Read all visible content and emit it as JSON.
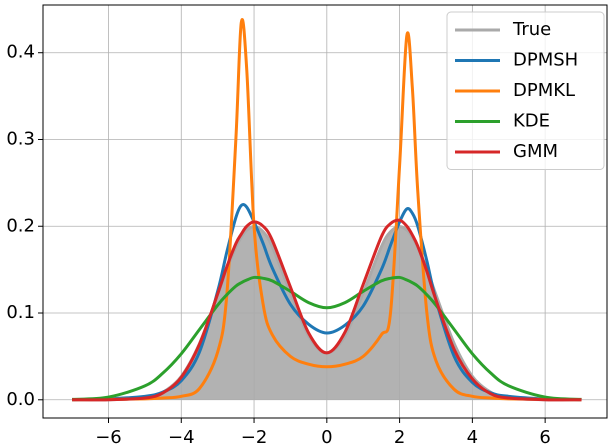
{
  "chart_data": {
    "type": "line",
    "x": [
      -7,
      -6,
      -5,
      -4.5,
      -4,
      -3.5,
      -3,
      -2.75,
      -2.5,
      -2.35,
      -2.2,
      -2,
      -1.75,
      -1.5,
      -1,
      -0.5,
      0,
      0.5,
      1,
      1.5,
      1.75,
      2,
      2.2,
      2.35,
      2.5,
      2.75,
      3,
      3.5,
      4,
      4.5,
      5,
      6,
      7
    ],
    "series": [
      {
        "name": "True",
        "color": "#aaaaaa",
        "fill": true,
        "values": [
          0,
          0.0001,
          0.0022,
          0.0088,
          0.027,
          0.0648,
          0.121,
          0.1506,
          0.176,
          0.1875,
          0.1955,
          0.1996,
          0.1936,
          0.1764,
          0.1232,
          0.0736,
          0.054,
          0.0736,
          0.1232,
          0.1764,
          0.1936,
          0.1996,
          0.1955,
          0.1875,
          0.176,
          0.1506,
          0.121,
          0.0648,
          0.027,
          0.0088,
          0.0022,
          0.0001,
          0
        ]
      },
      {
        "name": "DPMSH",
        "color": "#1f77b4",
        "values": [
          0,
          0.001,
          0.004,
          0.009,
          0.022,
          0.055,
          0.125,
          0.17,
          0.21,
          0.224,
          0.222,
          0.205,
          0.18,
          0.152,
          0.11,
          0.087,
          0.077,
          0.086,
          0.108,
          0.15,
          0.178,
          0.205,
          0.22,
          0.215,
          0.2,
          0.16,
          0.115,
          0.05,
          0.02,
          0.008,
          0.004,
          0.001,
          0
        ]
      },
      {
        "name": "DPMKL",
        "color": "#ff7f0e",
        "values": [
          0,
          0.0005,
          0.001,
          0.002,
          0.004,
          0.013,
          0.055,
          0.12,
          0.3,
          0.435,
          0.38,
          0.2,
          0.11,
          0.075,
          0.05,
          0.041,
          0.038,
          0.041,
          0.05,
          0.075,
          0.1,
          0.27,
          0.42,
          0.36,
          0.24,
          0.1,
          0.045,
          0.012,
          0.004,
          0.002,
          0.001,
          0.0005,
          0
        ]
      },
      {
        "name": "KDE",
        "color": "#2ca02c",
        "values": [
          0.0004,
          0.0031,
          0.016,
          0.031,
          0.053,
          0.081,
          0.109,
          0.121,
          0.131,
          0.135,
          0.138,
          0.141,
          0.14,
          0.137,
          0.125,
          0.112,
          0.106,
          0.112,
          0.125,
          0.137,
          0.14,
          0.141,
          0.138,
          0.135,
          0.131,
          0.121,
          0.109,
          0.081,
          0.053,
          0.031,
          0.016,
          0.0031,
          0.0004
        ]
      },
      {
        "name": "GMM",
        "color": "#d62728",
        "values": [
          0,
          0.0001,
          0.002,
          0.008,
          0.026,
          0.064,
          0.122,
          0.153,
          0.18,
          0.191,
          0.2,
          0.205,
          0.2,
          0.184,
          0.13,
          0.077,
          0.054,
          0.078,
          0.133,
          0.188,
          0.203,
          0.207,
          0.2,
          0.19,
          0.177,
          0.148,
          0.115,
          0.058,
          0.024,
          0.007,
          0.002,
          0.0001,
          0
        ]
      }
    ],
    "xlim": [
      -7.8,
      7.7
    ],
    "ylim": [
      -0.021,
      0.455
    ],
    "xticks": [
      {
        "value": -6,
        "label": "−6"
      },
      {
        "value": -4,
        "label": "−4"
      },
      {
        "value": -2,
        "label": "−2"
      },
      0,
      2,
      4,
      6
    ],
    "yticks": [
      {
        "value": 0,
        "label": "0.0"
      },
      0.1,
      0.2,
      0.3,
      0.4
    ],
    "grid": true,
    "legend": "upper right"
  }
}
